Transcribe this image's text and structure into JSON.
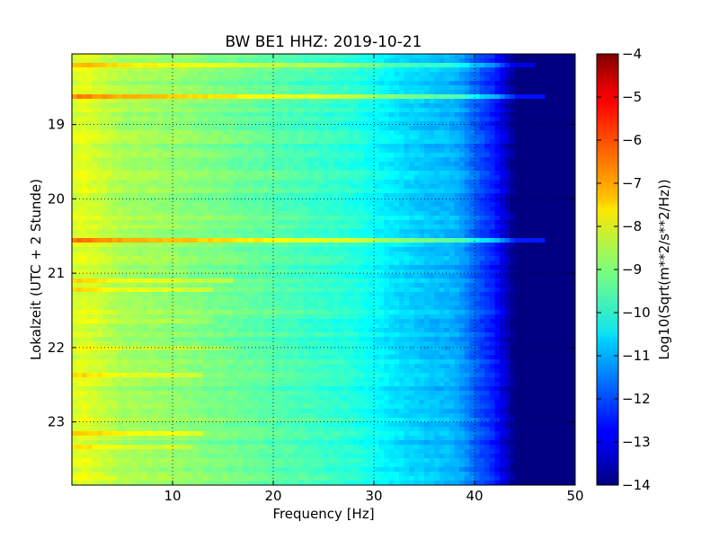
{
  "chart_data": {
    "type": "heatmap",
    "title": "BW BE1 HHZ: 2019-10-21",
    "xlabel": "Frequency [Hz]",
    "ylabel": "Lokalzeit (UTC + 2 Stunde)",
    "xlim": [
      0,
      50
    ],
    "ylim": [
      18.05,
      23.85
    ],
    "y_axis_direction": "inverted (time increases downward)",
    "x_ticks": [
      10,
      20,
      30,
      40,
      50
    ],
    "x_tick_labels": [
      "10",
      "20",
      "30",
      "40",
      "50"
    ],
    "y_ticks": [
      19,
      20,
      21,
      22,
      23
    ],
    "y_tick_labels": [
      "19",
      "20",
      "21",
      "22",
      "23"
    ],
    "grid": true,
    "colormap": "jet",
    "colorbar": {
      "label": "Log10(Sqrt(m**2/s**2/Hz))",
      "range": [
        -14,
        -4
      ],
      "ticks": [
        -4,
        -5,
        -6,
        -7,
        -8,
        -9,
        -10,
        -11,
        -12,
        -13,
        -14
      ],
      "tick_labels": [
        "−4",
        "−5",
        "−6",
        "−7",
        "−8",
        "−9",
        "−10",
        "−11",
        "−12",
        "−13",
        "−14"
      ]
    },
    "frequency_profile": {
      "frequency_hz": [
        0,
        1,
        3,
        5,
        10,
        15,
        20,
        25,
        28,
        30,
        32,
        35,
        38,
        39,
        40,
        42,
        43,
        44,
        45,
        50
      ],
      "log_amplitude": [
        -8.2,
        -8.0,
        -8.3,
        -8.6,
        -8.8,
        -9.1,
        -9.4,
        -9.7,
        -9.9,
        -10.2,
        -10.5,
        -10.8,
        -11.0,
        -11.3,
        -11.8,
        -12.5,
        -13.2,
        -14.0,
        -14.0,
        -14.0
      ]
    },
    "high_noise_events": [
      {
        "time_h": 18.22,
        "delta": 1.0,
        "fmax_hz": 46
      },
      {
        "time_h": 18.62,
        "delta": 1.4,
        "fmax_hz": 47
      },
      {
        "time_h": 20.57,
        "delta": 1.5,
        "fmax_hz": 47
      },
      {
        "time_h": 21.1,
        "delta": 0.6,
        "fmax_hz": 16
      },
      {
        "time_h": 21.25,
        "delta": 0.6,
        "fmax_hz": 14
      },
      {
        "time_h": 21.65,
        "delta": 0.5,
        "fmax_hz": 14
      },
      {
        "time_h": 21.98,
        "delta": 0.5,
        "fmax_hz": 16
      },
      {
        "time_h": 22.38,
        "delta": 0.5,
        "fmax_hz": 13
      },
      {
        "time_h": 23.18,
        "delta": 0.7,
        "fmax_hz": 13
      },
      {
        "time_h": 23.32,
        "delta": 0.5,
        "fmax_hz": 12
      }
    ]
  }
}
